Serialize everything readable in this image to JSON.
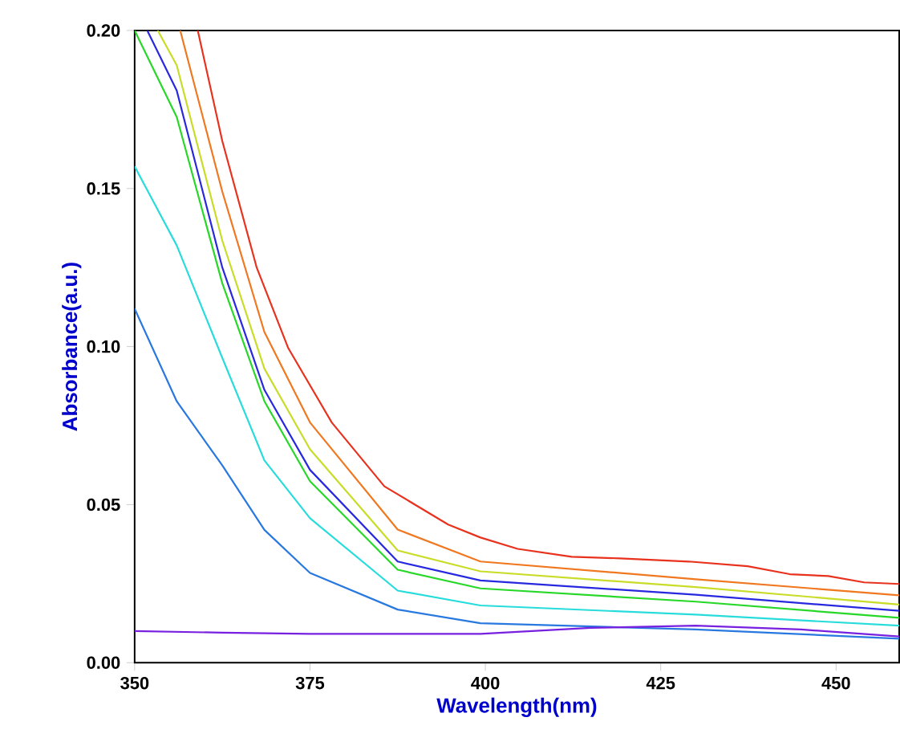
{
  "chart_data": {
    "type": "line",
    "xlabel": "Wavelength(nm)",
    "ylabel": "Absorbance(a.u.)",
    "xlim": [
      350,
      459
    ],
    "ylim": [
      0,
      0.2
    ],
    "xticks": [
      350,
      375,
      400,
      425,
      450
    ],
    "yticks": [
      {
        "value": 0,
        "label": "0.00"
      },
      {
        "value": 0.05,
        "label": "0.05"
      },
      {
        "value": 0.1,
        "label": "0.10"
      },
      {
        "value": 0.15,
        "label": "0.15"
      },
      {
        "value": 0.2,
        "label": "0.20"
      }
    ],
    "grid": false,
    "marker": "none",
    "line_style": "solid",
    "series": [
      {
        "color": "#e8321e",
        "x": [
          359,
          362.5,
          367.4,
          371.9,
          378.1,
          385.6,
          394.7,
          399.3,
          404.6,
          412.3,
          419.2,
          429,
          437.4,
          443.4,
          448.9,
          454,
          459
        ],
        "values": [
          0.2,
          0.165,
          0.125,
          0.0995,
          0.076,
          0.0558,
          0.0437,
          0.0396,
          0.036,
          0.0335,
          0.033,
          0.032,
          0.0305,
          0.028,
          0.0274,
          0.0254,
          0.0249
        ]
      },
      {
        "color": "#f07820",
        "x": [
          356.5,
          362.5,
          368.5,
          375,
          387.5,
          399.3,
          430,
          459
        ],
        "values": [
          0.2,
          0.149,
          0.1046,
          0.076,
          0.0421,
          0.032,
          0.0264,
          0.0213
        ]
      },
      {
        "color": "#c8dc28",
        "x": [
          353.3,
          356,
          362.5,
          368.5,
          375,
          387.5,
          399.3,
          430,
          459
        ],
        "values": [
          0.2,
          0.189,
          0.1335,
          0.093,
          0.0675,
          0.0355,
          0.0289,
          0.0239,
          0.0184
        ]
      },
      {
        "color": "#2828e0",
        "x": [
          351.8,
          356,
          362.5,
          368.5,
          375,
          387.5,
          399.3,
          430,
          459
        ],
        "values": [
          0.2,
          0.181,
          0.125,
          0.0863,
          0.061,
          0.032,
          0.026,
          0.0215,
          0.0164
        ]
      },
      {
        "color": "#28d828",
        "x": [
          350,
          356,
          362.5,
          368.5,
          375,
          387.5,
          399.3,
          430,
          459
        ],
        "values": [
          0.2,
          0.1726,
          0.12,
          0.0827,
          0.0574,
          0.0294,
          0.0235,
          0.0193,
          0.0142
        ]
      },
      {
        "color": "#28dcdc",
        "x": [
          350,
          356,
          362.5,
          368.5,
          375,
          387.5,
          399.3,
          430,
          459
        ],
        "values": [
          0.157,
          0.132,
          0.0964,
          0.064,
          0.0457,
          0.0228,
          0.0181,
          0.0152,
          0.0117
        ]
      },
      {
        "color": "#2878e0",
        "x": [
          350,
          356,
          362.5,
          368.5,
          375,
          387.5,
          399.3,
          430,
          459
        ],
        "values": [
          0.112,
          0.0827,
          0.0624,
          0.042,
          0.0284,
          0.0168,
          0.0125,
          0.0105,
          0.0076
        ]
      },
      {
        "color": "#7820e0",
        "x": [
          350,
          362.5,
          375,
          387.5,
          399.3,
          415,
          430,
          445,
          459
        ],
        "values": [
          0.01,
          0.0095,
          0.0091,
          0.0091,
          0.0091,
          0.011,
          0.0117,
          0.0105,
          0.0083
        ]
      }
    ]
  }
}
